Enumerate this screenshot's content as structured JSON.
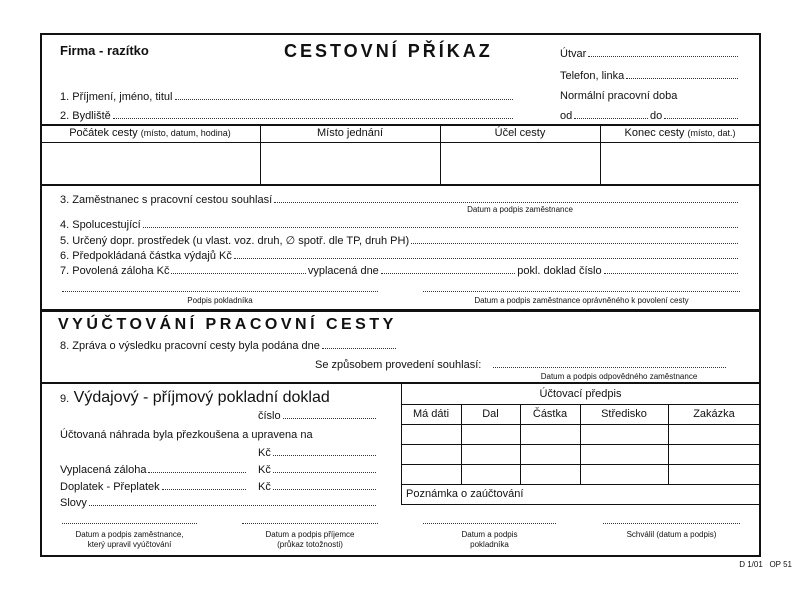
{
  "header": {
    "firm": "Firma - razítko",
    "title": "CESTOVNÍ PŘÍKAZ",
    "unit": "Útvar",
    "phone": "Telefon, linka",
    "work_hours": "Normální pracovní doba",
    "from": "od",
    "to": "do"
  },
  "fields": {
    "name": "1. Příjmení, jméno, titul",
    "address": "2. Bydliště"
  },
  "trip_table": {
    "columns": [
      "Počátek cesty",
      "Místo jednání",
      "Účel cesty",
      "Konec cesty"
    ],
    "notes": [
      "(místo, datum, hodina)",
      "",
      "",
      "(místo, dat.)"
    ]
  },
  "section2": {
    "consent": "3. Zaměstnanec s pracovní cestou souhlasí",
    "consent_sig": "Datum a podpis zaměstnance",
    "companions": "4. Spolucestující",
    "transport": "5. Určený dopr. prostředek (u vlast. voz. druh, ∅ spotř. dle TP, druh PH)",
    "expected": "6. Předpokládaná částka výdajů Kč",
    "advance": "7. Povolená záloha Kč",
    "paid_on": "vyplacená dne",
    "receipt": "pokl. doklad číslo",
    "cashier_sig": "Podpis pokladníka",
    "authorizer_sig": "Datum a podpis zaměstnance oprávněného k povolení cesty"
  },
  "settlement": {
    "title": "VYÚČTOVÁNÍ PRACOVNÍ CESTY",
    "report": "8. Zpráva o výsledku pracovní cesty byla podána dne",
    "agree": "Se způsobem provedení souhlasí:",
    "agree_sig": "Datum a podpis odpovědného zaměstnance"
  },
  "cash": {
    "number": "9.",
    "title": "Výdajový - příjmový pokladní doklad",
    "cislo": "číslo",
    "reviewed": "Účtovaná náhrada byla přezkoušena a upravena na",
    "kc": "Kč",
    "advance_paid": "Vyplacená záloha",
    "surcharge": "Doplatek - Přeplatek",
    "words": "Slovy"
  },
  "accounting": {
    "title": "Účtovací předpis",
    "columns": [
      "Má dáti",
      "Dal",
      "Částka",
      "Středisko",
      "Zakázka"
    ],
    "note": "Poznámka o zaúčtování"
  },
  "signatures": [
    [
      "Datum a podpis zaměstnance,",
      "který upravil vyúčtování"
    ],
    [
      "Datum a podpis příjemce",
      "(průkaz totožnosti)"
    ],
    [
      "Datum a podpis",
      "pokladníka"
    ],
    [
      "Schválil (datum a podpis)",
      ""
    ]
  ],
  "footer": "D 1/01   OP 51"
}
